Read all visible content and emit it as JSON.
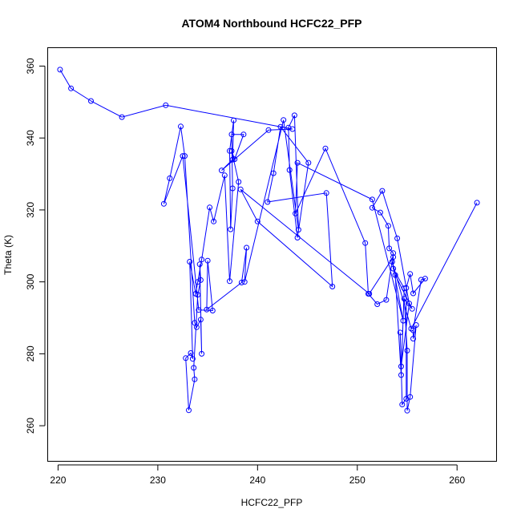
{
  "chart_data": {
    "type": "scatter",
    "title": "ATOM4 Northbound HCFC22_PFP",
    "xlabel": "HCFC22_PFP",
    "ylabel": "Theta (K)",
    "xlim": [
      219,
      264
    ],
    "ylim": [
      250,
      365
    ],
    "xticks": [
      220,
      230,
      240,
      250,
      260
    ],
    "yticks": [
      260,
      280,
      300,
      320,
      340,
      360
    ],
    "grid": false,
    "marker": "open-circle",
    "connect_points": true,
    "color": "#0000ff",
    "points": [
      [
        220.2,
        359.0
      ],
      [
        221.3,
        353.8
      ],
      [
        223.3,
        350.3
      ],
      [
        226.4,
        345.8
      ],
      [
        230.8,
        349.1
      ],
      [
        243.5,
        342.5
      ],
      [
        241.1,
        342.2
      ],
      [
        236.4,
        331.0
      ],
      [
        237.5,
        334.0
      ],
      [
        237.6,
        344.9
      ],
      [
        237.2,
        336.4
      ],
      [
        237.3,
        314.6
      ],
      [
        237.5,
        326.0
      ],
      [
        237.4,
        341.0
      ],
      [
        238.6,
        341.0
      ],
      [
        237.7,
        334.1
      ],
      [
        237.4,
        336.4
      ],
      [
        238.1,
        327.8
      ],
      [
        237.2,
        300.2
      ],
      [
        236.7,
        329.6
      ],
      [
        235.6,
        316.8
      ],
      [
        235.2,
        320.7
      ],
      [
        234.4,
        306.2
      ],
      [
        234.0,
        300.0
      ],
      [
        233.8,
        296.7
      ],
      [
        233.2,
        305.6
      ],
      [
        233.5,
        278.6
      ],
      [
        233.3,
        280.2
      ],
      [
        232.8,
        278.8
      ],
      [
        233.1,
        264.3
      ],
      [
        233.7,
        272.9
      ],
      [
        233.6,
        276.1
      ],
      [
        234.0,
        296.4
      ],
      [
        234.3,
        300.5
      ],
      [
        234.2,
        304.9
      ],
      [
        234.4,
        280.0
      ],
      [
        234.3,
        289.5
      ],
      [
        233.9,
        287.4
      ],
      [
        233.7,
        288.6
      ],
      [
        232.7,
        335.0
      ],
      [
        232.3,
        343.2
      ],
      [
        231.2,
        328.8
      ],
      [
        230.6,
        321.7
      ],
      [
        232.5,
        335.0
      ],
      [
        234.1,
        292.2
      ],
      [
        235.5,
        292.0
      ],
      [
        235.0,
        305.9
      ],
      [
        234.9,
        292.3
      ],
      [
        238.4,
        299.8
      ],
      [
        238.9,
        309.5
      ],
      [
        238.7,
        300.0
      ],
      [
        242.6,
        345.0
      ],
      [
        244.1,
        314.5
      ],
      [
        243.7,
        346.3
      ],
      [
        243.1,
        342.9
      ],
      [
        243.2,
        331.1
      ],
      [
        244.0,
        312.3
      ],
      [
        245.1,
        333.1
      ],
      [
        242.3,
        343.1
      ],
      [
        241.6,
        330.2
      ],
      [
        241.0,
        322.2
      ],
      [
        246.9,
        324.7
      ],
      [
        247.5,
        298.7
      ],
      [
        240.0,
        316.8
      ],
      [
        238.3,
        325.7
      ],
      [
        251.2,
        296.7
      ],
      [
        253.6,
        306.9
      ],
      [
        253.6,
        303.7
      ],
      [
        254.7,
        298.2
      ],
      [
        254.4,
        274.1
      ],
      [
        253.8,
        301.9
      ],
      [
        255.5,
        292.5
      ],
      [
        254.7,
        295.3
      ],
      [
        255.0,
        280.9
      ],
      [
        255.0,
        264.2
      ],
      [
        255.3,
        268.0
      ],
      [
        255.9,
        288.0
      ],
      [
        255.6,
        284.2
      ],
      [
        255.6,
        286.5
      ],
      [
        256.4,
        300.6
      ],
      [
        256.8,
        300.9
      ],
      [
        255.6,
        296.8
      ],
      [
        255.3,
        302.2
      ],
      [
        254.9,
        298.3
      ],
      [
        254.9,
        267.5
      ],
      [
        254.5,
        265.9
      ],
      [
        254.3,
        285.9
      ],
      [
        254.4,
        276.5
      ],
      [
        255.2,
        294.0
      ],
      [
        254.0,
        312.1
      ],
      [
        252.5,
        325.3
      ],
      [
        251.5,
        320.6
      ],
      [
        252.3,
        319.3
      ],
      [
        253.1,
        315.6
      ],
      [
        253.2,
        309.3
      ],
      [
        253.6,
        308.0
      ],
      [
        252.9,
        295.0
      ],
      [
        252.0,
        293.8
      ],
      [
        251.1,
        296.7
      ],
      [
        250.8,
        310.8
      ],
      [
        246.8,
        337.1
      ],
      [
        243.8,
        319.0
      ],
      [
        244.0,
        333.1
      ],
      [
        251.5,
        322.9
      ],
      [
        254.6,
        289.2
      ],
      [
        253.5,
        305.6
      ],
      [
        255.4,
        287.0
      ],
      [
        262.0,
        322.0
      ]
    ]
  }
}
